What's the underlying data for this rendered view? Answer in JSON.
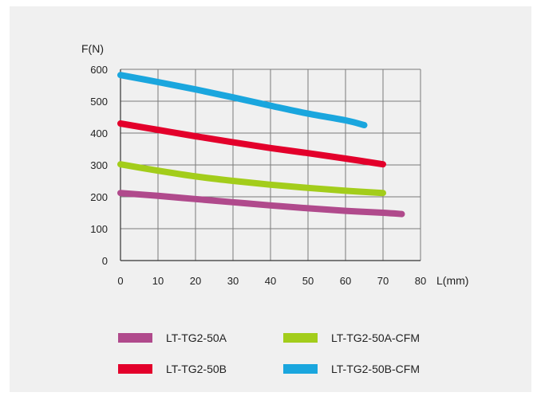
{
  "chart_data": {
    "type": "line",
    "xlabel": "L(mm)",
    "ylabel": "F(N)",
    "xlim": [
      0,
      80
    ],
    "ylim": [
      0,
      600
    ],
    "x_ticks": [
      0,
      10,
      20,
      30,
      40,
      50,
      60,
      70,
      80
    ],
    "y_ticks": [
      0,
      100,
      200,
      300,
      400,
      500,
      600
    ],
    "grid": true,
    "legend_position": "bottom",
    "series": [
      {
        "name": "LT-TG2-50A",
        "color": "#b04a8c",
        "x": [
          0,
          10,
          20,
          30,
          40,
          50,
          60,
          70,
          75
        ],
        "y": [
          212,
          203,
          193,
          183,
          173,
          164,
          156,
          150,
          146
        ]
      },
      {
        "name": "LT-TG2-50B",
        "color": "#e3002b",
        "x": [
          0,
          10,
          20,
          30,
          40,
          50,
          60,
          70
        ],
        "y": [
          430,
          410,
          390,
          371,
          353,
          337,
          320,
          302
        ]
      },
      {
        "name": "LT-TG2-50A-CFM",
        "color": "#a3cd1b",
        "x": [
          0,
          10,
          20,
          30,
          40,
          50,
          60,
          70
        ],
        "y": [
          302,
          282,
          264,
          250,
          238,
          228,
          219,
          212
        ]
      },
      {
        "name": "LT-TG2-50B-CFM",
        "color": "#1aa6de",
        "x": [
          0,
          10,
          20,
          30,
          40,
          50,
          60,
          65
        ],
        "y": [
          582,
          560,
          537,
          512,
          486,
          461,
          440,
          425
        ]
      }
    ]
  }
}
